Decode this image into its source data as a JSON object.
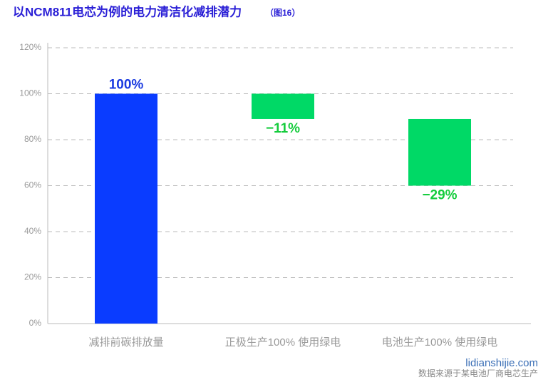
{
  "chart_data": {
    "type": "waterfall",
    "title": "以NCM811电芯为例的电力清洁化减排潜力",
    "title_note": "（图16）",
    "categories": [
      "减排前碳排放量",
      "正极生产100% 使用绿电",
      "电池生产100% 使用绿电"
    ],
    "values": [
      100,
      -11,
      -29
    ],
    "value_labels": [
      "100%",
      "−11%",
      "−29%"
    ],
    "colors": [
      "#0a3cff",
      "#00d966",
      "#00d966"
    ],
    "label_colors": [
      "#1a3ae0",
      "#14cc3c",
      "#14cc3c"
    ],
    "ylim": [
      0,
      120
    ],
    "yticks": [
      {
        "value": 0,
        "label": "0%"
      },
      {
        "value": 20,
        "label": "20%"
      },
      {
        "value": 40,
        "label": "40%"
      },
      {
        "value": 60,
        "label": "60%"
      },
      {
        "value": 80,
        "label": "80%"
      },
      {
        "value": 100,
        "label": "100%"
      },
      {
        "value": 120,
        "label": "120%"
      }
    ],
    "grid": true,
    "watermark": "lidianshijie.com",
    "source": "数据来源于某电池厂商电芯生产"
  }
}
